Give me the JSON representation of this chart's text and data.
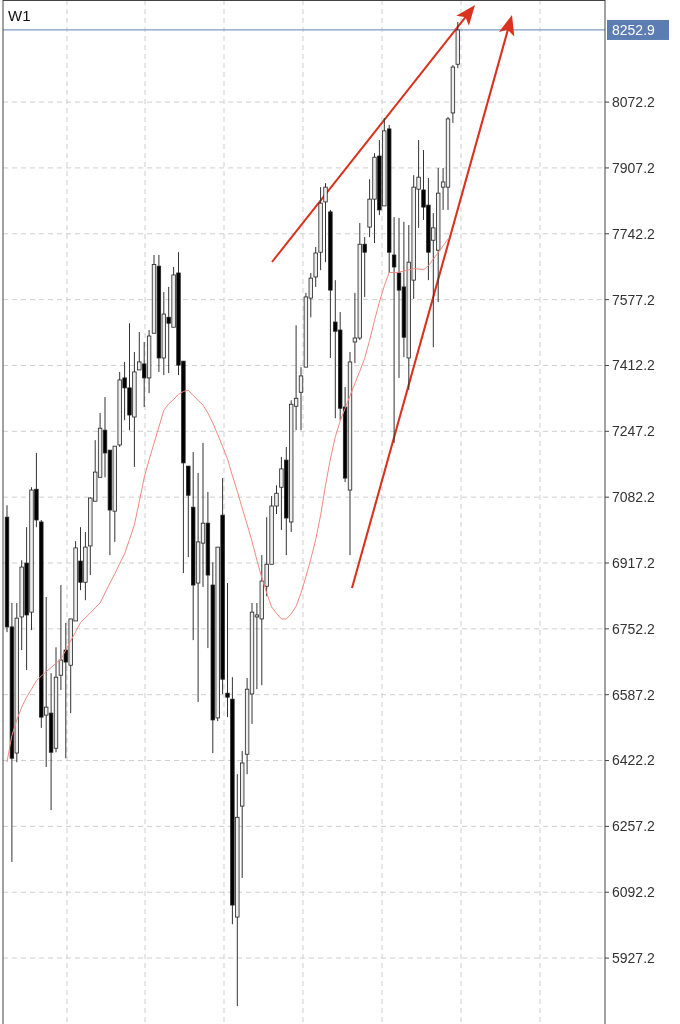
{
  "chart_data": {
    "type": "candlestick",
    "title": "W1",
    "categories": [
      null,
      null,
      null,
      null,
      null,
      null,
      null,
      null,
      null,
      null,
      null,
      null,
      null,
      null,
      null,
      null,
      null,
      null,
      null,
      null,
      null,
      null,
      null,
      null,
      null,
      null,
      null,
      null,
      null,
      null,
      null,
      null,
      null,
      null,
      null,
      null,
      null,
      null,
      null,
      null,
      null,
      null,
      null,
      null,
      null,
      null,
      null,
      null,
      null,
      null,
      null,
      null,
      null,
      null,
      null,
      null,
      null,
      null,
      null,
      null,
      null,
      null,
      null,
      null,
      null,
      null,
      null,
      null,
      null,
      null,
      null,
      null,
      null,
      null,
      null,
      null,
      null,
      null,
      null,
      null,
      null,
      null,
      null,
      null,
      null,
      null,
      null,
      null,
      null,
      null,
      null,
      null,
      null
    ],
    "ohlc": [
      [
        7032,
        7062,
        6744,
        6757
      ],
      [
        6757,
        6817,
        6168,
        6428
      ],
      [
        6441,
        6817,
        6418,
        6779
      ],
      [
        6782,
        6924,
        6699,
        6907
      ],
      [
        6917,
        7007,
        6649,
        6787
      ],
      [
        6794,
        7107,
        6749,
        7100
      ],
      [
        7102,
        7193,
        7007,
        7025
      ],
      [
        7020,
        7025,
        6504,
        6531
      ],
      [
        6536,
        6832,
        6406,
        6556
      ],
      [
        6541,
        6641,
        6298,
        6443
      ],
      [
        6453,
        6706,
        6443,
        6631
      ],
      [
        6636,
        6862,
        6599,
        6674
      ],
      [
        6699,
        6767,
        6428,
        6669
      ],
      [
        6661,
        6777,
        6541,
        6777
      ],
      [
        6772,
        6972,
        6772,
        6955
      ],
      [
        6922,
        7007,
        6849,
        6869
      ],
      [
        6869,
        6995,
        6824,
        6957
      ],
      [
        6960,
        7082,
        6887,
        7080
      ],
      [
        7072,
        7225,
        7072,
        7145
      ],
      [
        7132,
        7293,
        7132,
        7255
      ],
      [
        7250,
        7333,
        7132,
        7193
      ],
      [
        7200,
        7200,
        6937,
        7050
      ],
      [
        7047,
        7210,
        6970,
        7210
      ],
      [
        7213,
        7396,
        7208,
        7376
      ],
      [
        7381,
        7421,
        7275,
        7356
      ],
      [
        7356,
        7518,
        7250,
        7288
      ],
      [
        7283,
        7446,
        7158,
        7396
      ],
      [
        7401,
        7496,
        7401,
        7421
      ],
      [
        7416,
        7471,
        7308,
        7381
      ],
      [
        7381,
        7501,
        7343,
        7486
      ],
      [
        7493,
        7689,
        7493,
        7665
      ],
      [
        7661,
        7689,
        7396,
        7431
      ],
      [
        7431,
        7596,
        7388,
        7541
      ],
      [
        7533,
        7609,
        7393,
        7518
      ],
      [
        7508,
        7659,
        7508,
        7639
      ],
      [
        7644,
        7696,
        7388,
        7413
      ],
      [
        7423,
        7423,
        6892,
        7168
      ],
      [
        7160,
        7160,
        6932,
        7087
      ],
      [
        7057,
        7195,
        6724,
        6862
      ],
      [
        6867,
        7143,
        6569,
        6970
      ],
      [
        6967,
        7218,
        6857,
        7017
      ],
      [
        7017,
        7095,
        6704,
        6887
      ],
      [
        6862,
        6919,
        6441,
        6524
      ],
      [
        6529,
        6957,
        6521,
        6957
      ],
      [
        7037,
        7130,
        6589,
        6626
      ],
      [
        6591,
        6867,
        6531,
        6581
      ],
      [
        6576,
        6631,
        6012,
        6060
      ],
      [
        6030,
        6388,
        5807,
        6280
      ],
      [
        6308,
        6446,
        6128,
        6416
      ],
      [
        6438,
        6629,
        6388,
        6601
      ],
      [
        6589,
        6817,
        6514,
        6794
      ],
      [
        6782,
        6817,
        6601,
        6787
      ],
      [
        6777,
        6937,
        6611,
        6872
      ],
      [
        6859,
        7032,
        6834,
        6914
      ],
      [
        6914,
        7085,
        6914,
        7060
      ],
      [
        7060,
        7112,
        7040,
        7092
      ],
      [
        7107,
        7183,
        7000,
        7153
      ],
      [
        7175,
        7208,
        6937,
        7030
      ],
      [
        7020,
        7325,
        6995,
        7315
      ],
      [
        7310,
        7513,
        7250,
        7330
      ],
      [
        7345,
        7408,
        7250,
        7386
      ],
      [
        7408,
        7594,
        7408,
        7584
      ],
      [
        7581,
        7644,
        7533,
        7631
      ],
      [
        7634,
        7709,
        7609,
        7694
      ],
      [
        7696,
        7859,
        7651,
        7819
      ],
      [
        7822,
        7869,
        7671,
        7859
      ],
      [
        7797,
        7802,
        7431,
        7601
      ],
      [
        7521,
        7626,
        7280,
        7498
      ],
      [
        7501,
        7546,
        7275,
        7305
      ],
      [
        7308,
        7358,
        7120,
        7130
      ],
      [
        7100,
        7446,
        6937,
        7421
      ],
      [
        7471,
        7594,
        7418,
        7481
      ],
      [
        7481,
        7769,
        7476,
        7716
      ],
      [
        7716,
        7734,
        7584,
        7696
      ],
      [
        7759,
        7879,
        7734,
        7829
      ],
      [
        7829,
        7944,
        7719,
        7934
      ],
      [
        7937,
        7977,
        7789,
        7802
      ],
      [
        7812,
        8032,
        7812,
        8000
      ],
      [
        8005,
        8015,
        7644,
        7696
      ],
      [
        7689,
        7784,
        7218,
        7659
      ],
      [
        7644,
        7782,
        7381,
        7601
      ],
      [
        7609,
        7772,
        7433,
        7483
      ],
      [
        7431,
        7764,
        7351,
        7671
      ],
      [
        7626,
        7889,
        7579,
        7859
      ],
      [
        7854,
        7977,
        7757,
        7884
      ],
      [
        7852,
        7952,
        7777,
        7809
      ],
      [
        7814,
        7882,
        7626,
        7696
      ],
      [
        7726,
        7794,
        7458,
        7757
      ],
      [
        7701,
        7907,
        7571,
        7844
      ],
      [
        7859,
        7907,
        7802,
        7872
      ],
      [
        7859,
        8035,
        7802,
        8030
      ],
      [
        8045,
        8165,
        8020,
        8160
      ],
      [
        8167,
        8273,
        8157,
        8252.9
      ]
    ],
    "series": [
      {
        "type": "line",
        "color": "#f08a80",
        "values": [
          6419,
          6485,
          6524,
          6556,
          6581,
          6601,
          6622,
          6634,
          6645,
          6655,
          6666,
          6676,
          6699,
          6722,
          6745,
          6768,
          6780,
          6792,
          6805,
          6817,
          6842,
          6867,
          6890,
          6916,
          6940,
          6976,
          7013,
          7071,
          7131,
          7176,
          7217,
          7258,
          7300,
          7316,
          7327,
          7340,
          7347,
          7350,
          7337,
          7325,
          7313,
          7293,
          7268,
          7239,
          7209,
          7178,
          7136,
          7097,
          7055,
          7014,
          6972,
          6924,
          6880,
          6842,
          6807,
          6791,
          6777,
          6777,
          6790,
          6809,
          6842,
          6883,
          6927,
          6976,
          7037,
          7112,
          7178,
          7233,
          7273,
          7305,
          7336,
          7367,
          7398,
          7430,
          7475,
          7525,
          7571,
          7612,
          7645,
          7645,
          7646,
          7649,
          7652,
          7655,
          7654,
          7652,
          7662,
          7679,
          7695,
          7712,
          7729,
          null,
          null
        ]
      }
    ],
    "ylim": [
      5762,
      8328
    ],
    "yticks": [
      5927.2,
      6092.2,
      6257.2,
      6422.2,
      6587.2,
      6752.2,
      6917.2,
      7082.2,
      7247.2,
      7412.2,
      7577.2,
      7742.2,
      7907.2,
      8072.2
    ],
    "tick_labels": "y",
    "grid": true,
    "ref_lines": [
      {
        "axis": "y",
        "value": 8252.9,
        "label": "8252.9",
        "color": "#7f9cc8"
      }
    ]
  }
}
